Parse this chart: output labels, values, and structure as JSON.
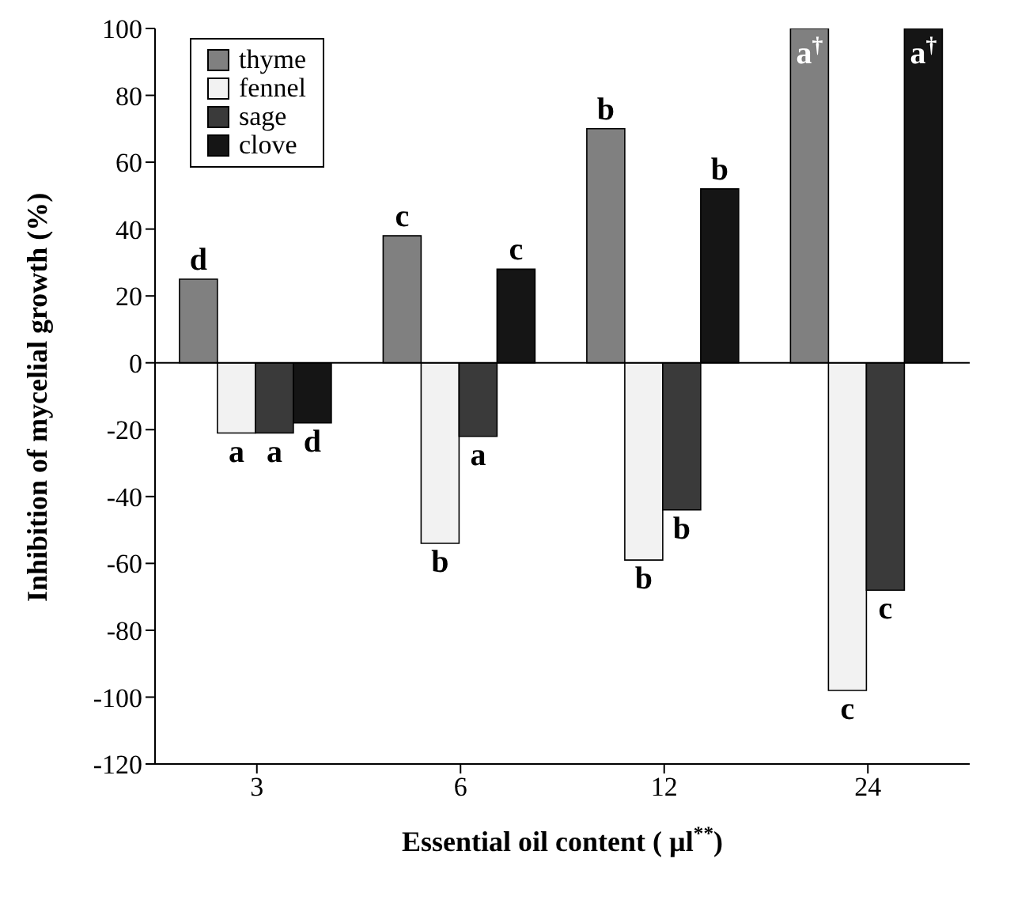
{
  "chart_data": {
    "type": "bar",
    "xlabel": "Essential oil content ( µl$^{**}$)",
    "ylabel": "Inhibition of mycelial growth (%)",
    "categories": [
      "3",
      "6",
      "12",
      "24"
    ],
    "series": [
      {
        "name": "thyme",
        "color": "#808080",
        "values": [
          25,
          38,
          70,
          100
        ],
        "value_labels": [
          "d",
          "c",
          "b",
          "a$^{†}$"
        ]
      },
      {
        "name": "fennel",
        "color": "#f2f2f2",
        "values": [
          -21,
          -54,
          -59,
          -98
        ],
        "value_labels": [
          "a",
          "b",
          "b",
          "c"
        ]
      },
      {
        "name": "sage",
        "color": "#3a3a3a",
        "values": [
          -21,
          -22,
          -44,
          -68
        ],
        "value_labels": [
          "a",
          "a",
          "b",
          "c"
        ]
      },
      {
        "name": "clove",
        "color": "#151515",
        "values": [
          -18,
          28,
          52,
          100
        ],
        "value_labels": [
          "d",
          "c",
          "b",
          "a$^{†}$"
        ]
      }
    ],
    "ylim": [
      -120,
      100
    ],
    "yticks": [
      -120,
      -100,
      -80,
      -60,
      -40,
      -20,
      0,
      20,
      40,
      60,
      80,
      100
    ],
    "ref_lines": [
      {
        "axis": "y",
        "value": 0
      }
    ],
    "grid": false,
    "legend": "top left"
  }
}
